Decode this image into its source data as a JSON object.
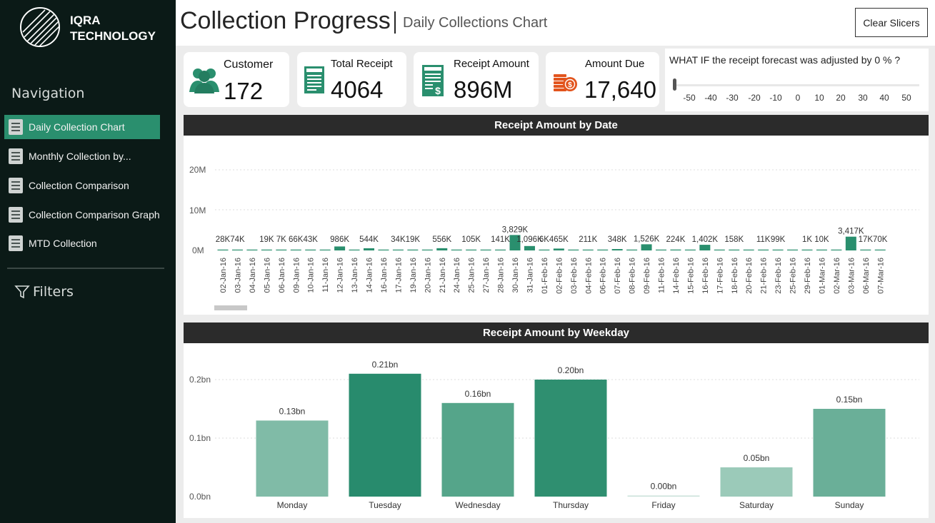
{
  "brand": {
    "line1": "IQRA",
    "line2": "TECHNOLOGY"
  },
  "nav": {
    "heading": "Navigation",
    "items": [
      {
        "label": "Daily Collection Chart",
        "active": true
      },
      {
        "label": "Monthly Collection by...",
        "active": false
      },
      {
        "label": "Collection Comparison",
        "active": false
      },
      {
        "label": "Collection Comparison Graph",
        "active": false
      },
      {
        "label": "MTD Collection",
        "active": false
      }
    ],
    "filters_label": "Filters"
  },
  "header": {
    "title": "Collection Progress",
    "subtitle": "Daily Collections Chart",
    "clear_label": "Clear Slicers"
  },
  "kpis": {
    "customer": {
      "label": "Customer",
      "value": "172",
      "icon": "customers-icon"
    },
    "total_receipt": {
      "label": "Total Receipt",
      "value": "4064",
      "icon": "receipt-icon"
    },
    "receipt_amount": {
      "label": "Receipt Amount",
      "value": "896M",
      "icon": "receipt-dollar-icon"
    },
    "amount_due": {
      "label": "Amount Due",
      "value": "17,640",
      "icon": "coins-icon"
    }
  },
  "whatif": {
    "question": "WHAT IF the receipt forecast was adjusted by 0 % ?",
    "value": 0,
    "ticks": [
      "-50",
      "-40",
      "-30",
      "-20",
      "-10",
      "0",
      "10",
      "20",
      "30",
      "40",
      "50"
    ]
  },
  "colors": {
    "accent": "#2a8f6e",
    "sidebar": "#0b1a17",
    "panel_head": "#2b2b2b"
  },
  "chart_data": [
    {
      "type": "bar",
      "title": "Receipt Amount by Date",
      "ylim": [
        0,
        20000000
      ],
      "yticks": [
        "20M",
        "10M",
        "0M"
      ],
      "categories": [
        "02-Jan-16",
        "03-Jan-16",
        "04-Jan-16",
        "05-Jan-16",
        "06-Jan-16",
        "09-Jan-16",
        "10-Jan-16",
        "11-Jan-16",
        "12-Jan-16",
        "13-Jan-16",
        "14-Jan-16",
        "16-Jan-16",
        "17-Jan-16",
        "19-Jan-16",
        "20-Jan-16",
        "21-Jan-16",
        "24-Jan-16",
        "25-Jan-16",
        "27-Jan-16",
        "28-Jan-16",
        "30-Jan-16",
        "31-Jan-16",
        "01-Feb-16",
        "02-Feb-16",
        "03-Feb-16",
        "04-Feb-16",
        "06-Feb-16",
        "07-Feb-16",
        "08-Feb-16",
        "09-Feb-16",
        "11-Feb-16",
        "14-Feb-16",
        "15-Feb-16",
        "16-Feb-16",
        "17-Feb-16",
        "18-Feb-16",
        "20-Feb-16",
        "21-Feb-16",
        "23-Feb-16",
        "25-Feb-16",
        "29-Feb-16",
        "01-Mar-16",
        "02-Mar-16",
        "03-Mar-16",
        "06-Mar-16",
        "07-Mar-16"
      ],
      "values": [
        28000,
        74000,
        0,
        19000,
        7000,
        66000,
        43000,
        0,
        986000,
        0,
        544000,
        0,
        34000,
        19000,
        0,
        556000,
        0,
        105000,
        0,
        141000,
        3829000,
        1096000,
        6000,
        465000,
        0,
        211000,
        0,
        348000,
        0,
        1526000,
        0,
        224000,
        0,
        1402000,
        0,
        158000,
        0,
        11000,
        99000,
        0,
        1000,
        10000,
        0,
        3417000,
        17000,
        70000
      ],
      "labels": [
        "28K",
        "74K",
        "",
        "19K",
        "7K",
        "66K",
        "43K",
        "",
        "986K",
        "",
        "544K",
        "",
        "34K",
        "19K",
        "",
        "556K",
        "",
        "105K",
        "",
        "141K",
        "3,829K",
        "1,096K",
        "6K",
        "465K",
        "",
        "211K",
        "",
        "348K",
        "",
        "1,526K",
        "",
        "224K",
        "",
        "1,402K",
        "",
        "158K",
        "",
        "11K",
        "99K",
        "",
        "1K",
        "10K",
        "",
        "3,417K",
        "17K",
        "70K"
      ]
    },
    {
      "type": "bar",
      "title": "Receipt Amount by Weekday",
      "ylim": [
        0,
        0.22
      ],
      "yticks": [
        "0.2bn",
        "0.1bn",
        "0.0bn"
      ],
      "categories": [
        "Monday",
        "Tuesday",
        "Wednesday",
        "Thursday",
        "Friday",
        "Saturday",
        "Sunday"
      ],
      "values": [
        0.13,
        0.21,
        0.16,
        0.2,
        0.0,
        0.05,
        0.15
      ],
      "labels": [
        "0.13bn",
        "0.21bn",
        "0.16bn",
        "0.20bn",
        "0.00bn",
        "0.05bn",
        "0.15bn"
      ],
      "colors": [
        "#80bba7",
        "#288b6d",
        "#55a58a",
        "#2f8f70",
        "#c9e1d8",
        "#9bcab9",
        "#6aaf98"
      ]
    }
  ]
}
